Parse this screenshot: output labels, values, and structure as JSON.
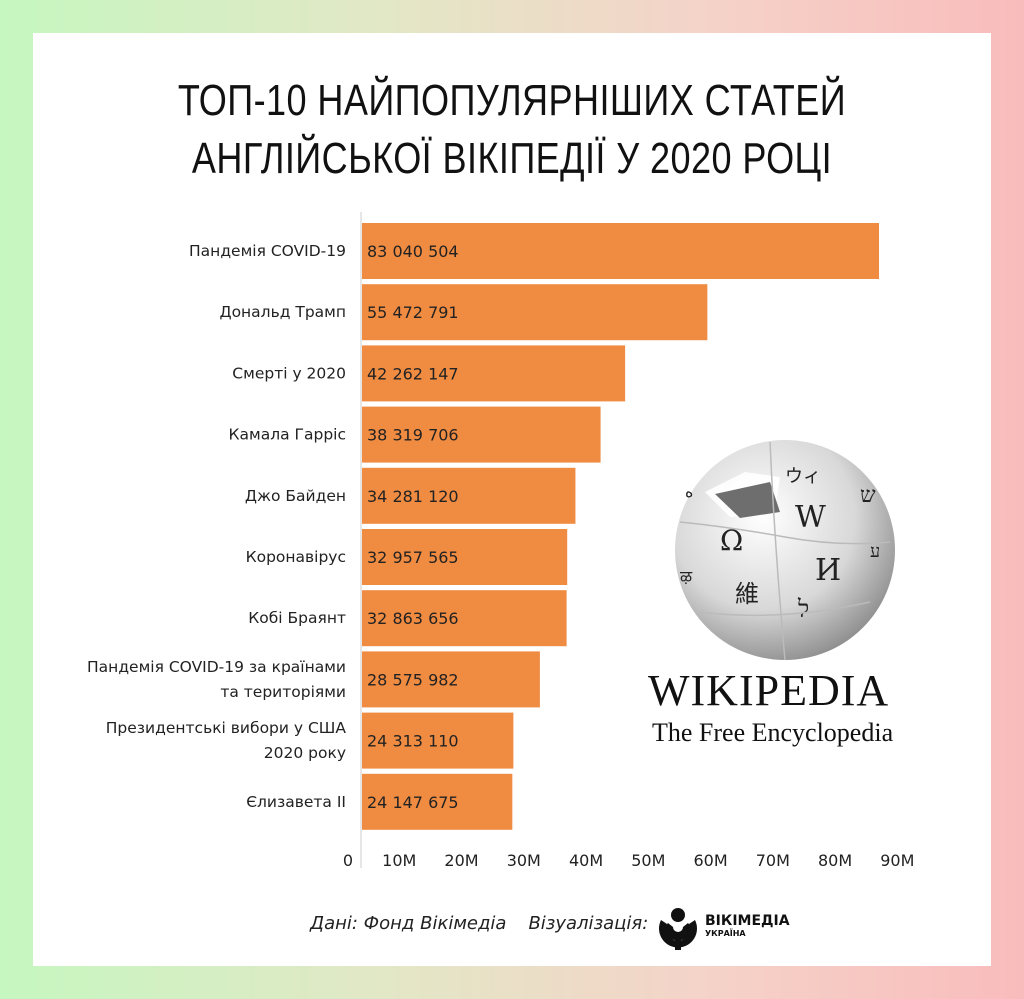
{
  "title_lines": [
    "ТОП-10 НАЙПОПУЛЯРНІШИХ СТАТЕЙ",
    "АНГЛІЙСЬКОЇ ВІКІПЕДІЇ У 2020 РОЦІ"
  ],
  "chart_data": {
    "type": "bar",
    "orientation": "horizontal",
    "categories": [
      [
        "Пандемія COVID-19"
      ],
      [
        "Дональд Трамп"
      ],
      [
        "Смерті у 2020"
      ],
      [
        "Камала Гарріс"
      ],
      [
        "Джо Байден"
      ],
      [
        "Коронавірус"
      ],
      [
        "Кобі Браянт"
      ],
      [
        "Пандемія COVID-19 за країнами",
        "та територіями"
      ],
      [
        "Президентські вибори у США",
        "2020 року"
      ],
      [
        "Єлизавета II"
      ]
    ],
    "values": [
      83040504,
      55472791,
      42262147,
      38319706,
      34281120,
      32957565,
      32863656,
      28575982,
      24313110,
      24147675
    ],
    "value_labels": [
      "83 040 504",
      "55 472 791",
      "42 262 147",
      "38 319 706",
      "34 281 120",
      "32 957 565",
      "32 863 656",
      "28 575 982",
      "24 313 110",
      "24 147 675"
    ],
    "xlim": [
      0,
      90000000
    ],
    "x_ticks": [
      0,
      10000000,
      20000000,
      30000000,
      40000000,
      50000000,
      60000000,
      70000000,
      80000000,
      90000000
    ],
    "x_tick_labels": [
      "0",
      "10M",
      "20M",
      "30M",
      "40M",
      "50M",
      "60M",
      "70M",
      "80M",
      "90M"
    ],
    "grid": false,
    "bar_color": "#f08c42"
  },
  "logo": {
    "wordmark": "WIKIPEDIA",
    "tagline": "The Free Encyclopedia"
  },
  "credits": {
    "data": "Дані: Фонд Вікімедіа",
    "viz": "Візуалізація:",
    "org_line1": "ВІКІМЕДІА",
    "org_line2": "УКРАЇНА"
  }
}
